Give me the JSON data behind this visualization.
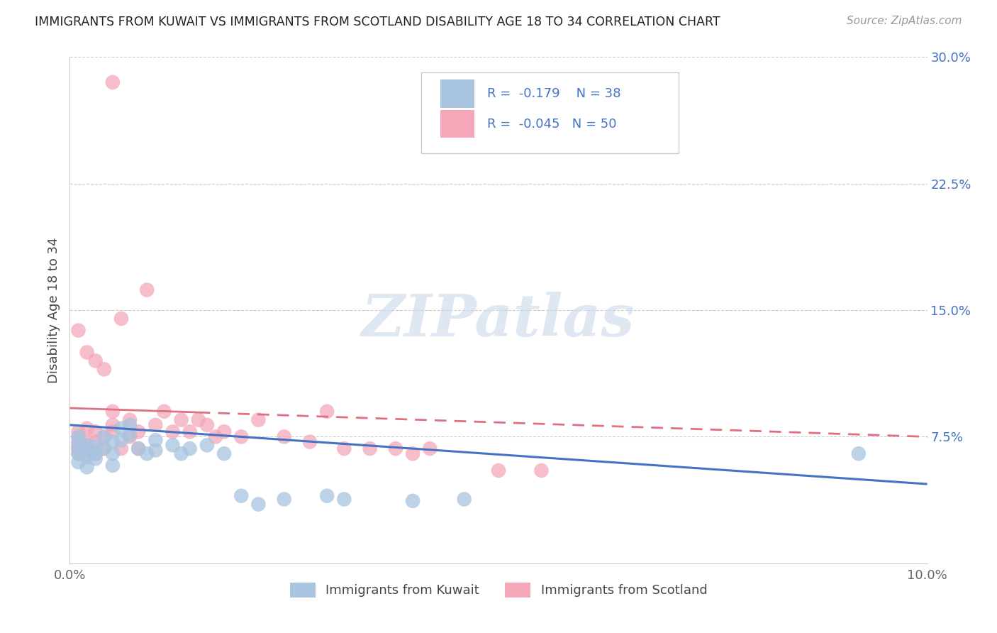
{
  "title": "IMMIGRANTS FROM KUWAIT VS IMMIGRANTS FROM SCOTLAND DISABILITY AGE 18 TO 34 CORRELATION CHART",
  "source": "Source: ZipAtlas.com",
  "ylabel": "Disability Age 18 to 34",
  "xlim": [
    0.0,
    0.1
  ],
  "ylim": [
    0.0,
    0.3
  ],
  "xtick_vals": [
    0.0,
    0.02,
    0.04,
    0.06,
    0.08,
    0.1
  ],
  "xtick_labels": [
    "0.0%",
    "",
    "",
    "",
    "",
    "10.0%"
  ],
  "yticks_right": [
    0.075,
    0.15,
    0.225,
    0.3
  ],
  "ytick_labels_right": [
    "7.5%",
    "15.0%",
    "22.5%",
    "30.0%"
  ],
  "kuwait_R": -0.179,
  "kuwait_N": 38,
  "scotland_R": -0.045,
  "scotland_N": 50,
  "kuwait_color": "#a8c4e0",
  "scotland_color": "#f4a7b9",
  "kuwait_line_color": "#4472c4",
  "scotland_line_color": "#e07080",
  "title_color": "#222222",
  "source_color": "#999999",
  "right_axis_color": "#4472c4",
  "legend_text_color": "#4472c4",
  "watermark_color": "#c8d8ea",
  "watermark": "ZIPatlas",
  "kuwait_x": [
    0.001,
    0.001,
    0.001,
    0.001,
    0.001,
    0.002,
    0.002,
    0.002,
    0.002,
    0.003,
    0.003,
    0.003,
    0.004,
    0.004,
    0.005,
    0.005,
    0.005,
    0.006,
    0.006,
    0.007,
    0.007,
    0.008,
    0.009,
    0.01,
    0.01,
    0.012,
    0.013,
    0.014,
    0.016,
    0.018,
    0.02,
    0.022,
    0.025,
    0.03,
    0.032,
    0.04,
    0.046,
    0.092
  ],
  "kuwait_y": [
    0.068,
    0.072,
    0.075,
    0.065,
    0.06,
    0.067,
    0.07,
    0.063,
    0.057,
    0.069,
    0.065,
    0.062,
    0.075,
    0.068,
    0.072,
    0.065,
    0.058,
    0.08,
    0.073,
    0.082,
    0.076,
    0.068,
    0.065,
    0.073,
    0.067,
    0.07,
    0.065,
    0.068,
    0.07,
    0.065,
    0.04,
    0.035,
    0.038,
    0.04,
    0.038,
    0.037,
    0.038,
    0.065
  ],
  "scotland_x": [
    0.001,
    0.001,
    0.001,
    0.001,
    0.001,
    0.001,
    0.002,
    0.002,
    0.002,
    0.002,
    0.002,
    0.003,
    0.003,
    0.003,
    0.003,
    0.004,
    0.004,
    0.004,
    0.005,
    0.005,
    0.005,
    0.006,
    0.006,
    0.007,
    0.007,
    0.008,
    0.008,
    0.009,
    0.01,
    0.011,
    0.012,
    0.013,
    0.014,
    0.015,
    0.016,
    0.017,
    0.018,
    0.02,
    0.022,
    0.025,
    0.028,
    0.03,
    0.032,
    0.035,
    0.038,
    0.04,
    0.042,
    0.05,
    0.055,
    0.005
  ],
  "scotland_y": [
    0.075,
    0.068,
    0.078,
    0.065,
    0.07,
    0.138,
    0.072,
    0.065,
    0.08,
    0.068,
    0.125,
    0.078,
    0.065,
    0.072,
    0.12,
    0.068,
    0.075,
    0.115,
    0.082,
    0.09,
    0.078,
    0.068,
    0.145,
    0.075,
    0.085,
    0.078,
    0.068,
    0.162,
    0.082,
    0.09,
    0.078,
    0.085,
    0.078,
    0.085,
    0.082,
    0.075,
    0.078,
    0.075,
    0.085,
    0.075,
    0.072,
    0.09,
    0.068,
    0.068,
    0.068,
    0.065,
    0.068,
    0.055,
    0.055,
    0.285
  ]
}
